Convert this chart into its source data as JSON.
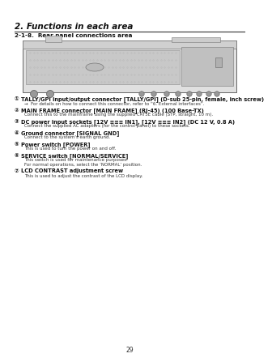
{
  "page_number": "29",
  "chapter_title": "2. Functions in each area",
  "section_title": "2-1-8.  Rear panel connections area",
  "bg_color": "#ffffff",
  "chapter_title_fontsize": 7.5,
  "section_title_fontsize": 5.2,
  "heading_fontsize": 4.8,
  "body_fontsize": 4.0,
  "items": [
    {
      "label": "①",
      "heading": "TALLY/GPI input/output connector [TALLY/GPI] (D-sub 25-pin, female, inch screw)",
      "body": "→  For details on how to connect this connector, refer to “6. External interfaces”."
    },
    {
      "label": "②",
      "heading": "MAIN FRAME connector [MAIN FRAME] (RJ-45) (100 Base-TX)",
      "body": "Connect this to the mainframe using the supplied CAT5E cable (STP, straight, 10 m)."
    },
    {
      "label": "③",
      "heading": "DC power input sockets [12V ≡≡≡ IN1], [12V ≡≡≡ IN2] (DC 12 V, 0.8 A)",
      "body": "Connect the supplied AC adapters (for the control panel) to these sockets."
    },
    {
      "label": "④",
      "heading": "Ground connector [SIGNAL GND]",
      "body": "Connect to the system's earth ground."
    },
    {
      "label": "⑤",
      "heading": "Power switch [POWER]",
      "body": "This is used to turn the power on and off."
    },
    {
      "label": "⑥",
      "heading": "SERVICE switch [NORMAL/SERVICE]",
      "body": "This switch is used for maintenance purposes.\nFor normal operations, select the ‘NORMAL’ position."
    },
    {
      "label": "⑦",
      "heading": "LCD CONTRAST adjustment screw",
      "body": "This is used to adjust the contrast of the LCD display."
    }
  ]
}
